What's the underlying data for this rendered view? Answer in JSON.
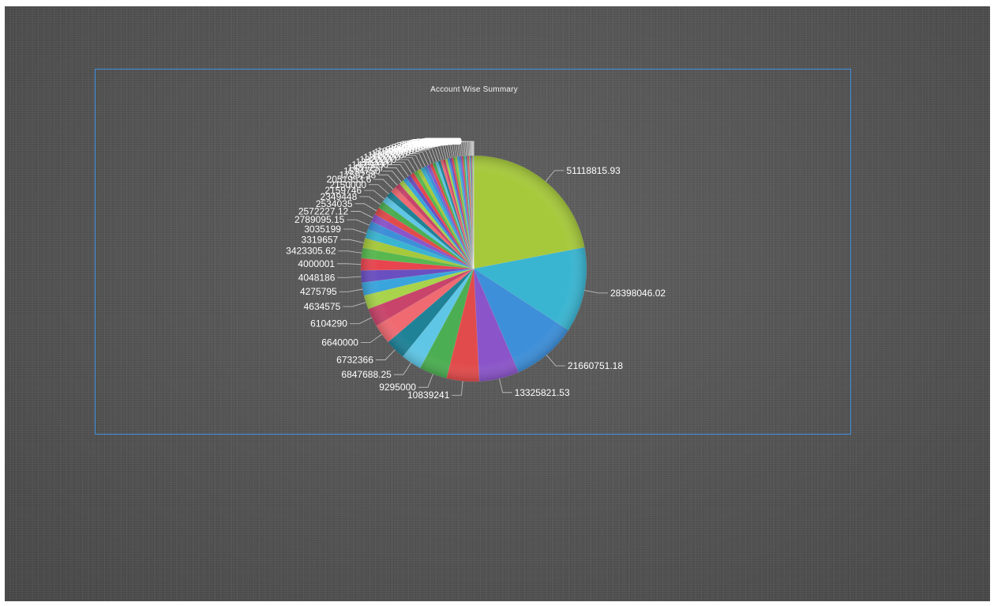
{
  "chart_data": {
    "type": "pie",
    "title": "Account Wise Summary",
    "values": [
      51118815.93,
      28398046.02,
      21660751.18,
      13325821.53,
      10839241,
      9295000,
      6847688.25,
      6732366,
      6640000,
      6104290,
      4634575,
      4275795,
      4048186,
      4000001,
      3423305.62,
      3319657,
      3035199,
      2789095.15,
      2572227.12,
      2534035,
      2349448,
      2159746,
      2150000,
      2051953.6,
      1759238,
      1594750,
      1481257,
      1425000,
      1390000,
      1320000,
      1250000,
      1180000,
      1100000,
      1050000,
      1000000,
      950000,
      900000,
      860000,
      820000,
      780000,
      740000,
      700000,
      680000,
      650000,
      620000,
      590000,
      560000,
      530000,
      500000,
      470000,
      440000,
      410000,
      380000,
      350000,
      320000,
      290000,
      260000,
      230000,
      200000,
      170000,
      140000,
      110000,
      80000,
      50000,
      20000,
      800
    ],
    "labels": [
      "51118815.93",
      "28398046.02",
      "21660751.18",
      "13325821.53",
      "10839241",
      "9295000",
      "6847688.25",
      "6732366",
      "6640000",
      "6104290",
      "4634575",
      "4275795",
      "4048186",
      "4000001",
      "3423305.62",
      "3319657",
      "3035199",
      "2789095.15",
      "2572227.12",
      "2534035",
      "2349448",
      "2159746",
      "2150000",
      "2051953.6",
      "1759238",
      "1594750",
      "1481257",
      "1425000",
      "1390000",
      "1320000",
      "1250000",
      "1180000",
      "1100000",
      "1050000",
      "1000000",
      "950000",
      "900000",
      "860000",
      "820000",
      "780000",
      "740000",
      "700000",
      "680000",
      "650000",
      "620000",
      "590000",
      "560000",
      "530000",
      "500000",
      "470000",
      "440000",
      "410000",
      "380000",
      "350000",
      "320000",
      "290000",
      "260000",
      "230000",
      "200000",
      "170000",
      "140000",
      "110000",
      "80000",
      "50000",
      "20000",
      "800"
    ],
    "colors": [
      "#a6c93c",
      "#3ab5d1",
      "#3d8fd9",
      "#8b55c9",
      "#e24b4b",
      "#4cae52",
      "#5fc6e6",
      "#1f8297",
      "#f06a72",
      "#c9446a",
      "#a8d34b",
      "#3aa5dc",
      "#6a4fc0",
      "#e8454f",
      "#58b84f"
    ],
    "legend": "none"
  }
}
